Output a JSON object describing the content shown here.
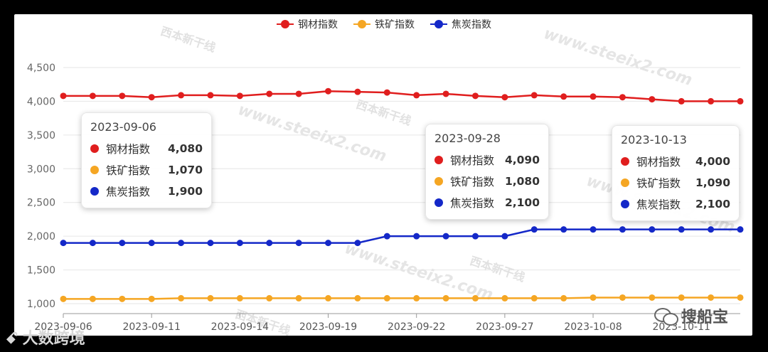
{
  "chart_data": {
    "type": "line",
    "title": "",
    "xlabel": "",
    "ylabel": "",
    "ylim": [
      1000,
      4500
    ],
    "yticks": [
      1000,
      1500,
      2000,
      2500,
      3000,
      3500,
      4000,
      4500
    ],
    "ytick_labels": [
      "1,000",
      "1,500",
      "2,000",
      "2,500",
      "3,000",
      "3,500",
      "4,000",
      "4,500"
    ],
    "legend_position": "top-center",
    "grid": true,
    "x": [
      "2023-09-06",
      "2023-09-07",
      "2023-09-08",
      "2023-09-11",
      "2023-09-12",
      "2023-09-13",
      "2023-09-14",
      "2023-09-15",
      "2023-09-18",
      "2023-09-19",
      "2023-09-20",
      "2023-09-21",
      "2023-09-22",
      "2023-09-25",
      "2023-09-26",
      "2023-09-27",
      "2023-09-28",
      "2023-10-07",
      "2023-10-08",
      "2023-10-09",
      "2023-10-10",
      "2023-10-11",
      "2023-10-12",
      "2023-10-13"
    ],
    "xtick_labels": [
      "2023-09-06",
      "2023-09-11",
      "2023-09-14",
      "2023-09-19",
      "2023-09-22",
      "2023-09-27",
      "2023-10-08",
      "2023-10-11"
    ],
    "xtick_indices": [
      0,
      3,
      6,
      9,
      12,
      15,
      18,
      21
    ],
    "series": [
      {
        "name": "钢材指数",
        "color": "#e01e1e",
        "values": [
          4080,
          4080,
          4080,
          4060,
          4090,
          4090,
          4080,
          4110,
          4110,
          4150,
          4140,
          4130,
          4090,
          4110,
          4080,
          4060,
          4090,
          4070,
          4070,
          4060,
          4030,
          4000,
          4000,
          4000
        ]
      },
      {
        "name": "铁矿指数",
        "color": "#f5a623",
        "values": [
          1070,
          1070,
          1070,
          1070,
          1080,
          1080,
          1080,
          1080,
          1080,
          1080,
          1080,
          1080,
          1080,
          1080,
          1080,
          1080,
          1080,
          1080,
          1090,
          1090,
          1090,
          1090,
          1090,
          1090
        ]
      },
      {
        "name": "焦炭指数",
        "color": "#1428c8",
        "values": [
          1900,
          1900,
          1900,
          1900,
          1900,
          1900,
          1900,
          1900,
          1900,
          1900,
          1900,
          2000,
          2000,
          2000,
          2000,
          2000,
          2100,
          2100,
          2100,
          2100,
          2100,
          2100,
          2100,
          2100
        ]
      }
    ]
  },
  "tooltips": [
    {
      "date": "2023-09-06",
      "rows": [
        {
          "name": "钢材指数",
          "value": "4,080"
        },
        {
          "name": "铁矿指数",
          "value": "1,070"
        },
        {
          "name": "焦炭指数",
          "value": "1,900"
        }
      ]
    },
    {
      "date": "2023-09-28",
      "rows": [
        {
          "name": "钢材指数",
          "value": "4,090"
        },
        {
          "name": "铁矿指数",
          "value": "1,080"
        },
        {
          "name": "焦炭指数",
          "value": "2,100"
        }
      ]
    },
    {
      "date": "2023-10-13",
      "rows": [
        {
          "name": "钢材指数",
          "value": "4,000"
        },
        {
          "name": "铁矿指数",
          "value": "1,090"
        },
        {
          "name": "焦炭指数",
          "value": "2,100"
        }
      ]
    }
  ],
  "watermark": {
    "url": "www.steeix2.com",
    "logo": "西本新干线"
  },
  "corner_left": "大数跨境",
  "corner_right": "搜船宝"
}
